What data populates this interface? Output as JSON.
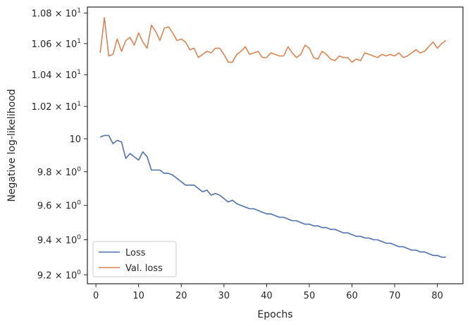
{
  "chart_data": {
    "type": "line",
    "title": "",
    "xlabel": "Epochs",
    "ylabel": "Negative log-likelihood",
    "xlim": [
      -2.0,
      86.0
    ],
    "ylim": [
      9.15,
      10.84
    ],
    "yscale": "log",
    "grid": false,
    "legend_position": "lower-left",
    "x_ticks": [
      0,
      10,
      20,
      30,
      40,
      50,
      60,
      70,
      80
    ],
    "x_tick_labels": [
      "0",
      "10",
      "20",
      "30",
      "40",
      "50",
      "60",
      "70",
      "80"
    ],
    "y_ticks": [
      9.2,
      9.4,
      9.6,
      9.8,
      10.0,
      10.2,
      10.4,
      10.6,
      10.8
    ],
    "y_tick_labels": [
      {
        "mantissa": "9.2",
        "exp": "0"
      },
      {
        "mantissa": "9.4",
        "exp": "0"
      },
      {
        "mantissa": "9.6",
        "exp": "0"
      },
      {
        "mantissa": "9.8",
        "exp": "0"
      },
      {
        "mantissa": "10",
        "exp": "1",
        "plain": "10"
      },
      {
        "mantissa": "1.02",
        "exp": "1"
      },
      {
        "mantissa": "1.04",
        "exp": "1"
      },
      {
        "mantissa": "1.06",
        "exp": "1"
      },
      {
        "mantissa": "1.08",
        "exp": "1"
      }
    ],
    "x": [
      1,
      2,
      3,
      4,
      5,
      6,
      7,
      8,
      9,
      10,
      11,
      12,
      13,
      14,
      15,
      16,
      17,
      18,
      19,
      20,
      21,
      22,
      23,
      24,
      25,
      26,
      27,
      28,
      29,
      30,
      31,
      32,
      33,
      34,
      35,
      36,
      37,
      38,
      39,
      40,
      41,
      42,
      43,
      44,
      45,
      46,
      47,
      48,
      49,
      50,
      51,
      52,
      53,
      54,
      55,
      56,
      57,
      58,
      59,
      60,
      61,
      62,
      63,
      64,
      65,
      66,
      67,
      68,
      69,
      70,
      71,
      72,
      73,
      74,
      75,
      76,
      77,
      78,
      79,
      80,
      81,
      82
    ],
    "series": [
      {
        "name": "Loss",
        "color": "#4c72b0",
        "values": [
          10.01,
          10.02,
          10.02,
          9.97,
          9.99,
          9.98,
          9.88,
          9.91,
          9.89,
          9.87,
          9.92,
          9.89,
          9.81,
          9.81,
          9.81,
          9.79,
          9.79,
          9.78,
          9.76,
          9.74,
          9.72,
          9.72,
          9.72,
          9.7,
          9.68,
          9.69,
          9.66,
          9.67,
          9.66,
          9.64,
          9.62,
          9.63,
          9.61,
          9.6,
          9.59,
          9.58,
          9.58,
          9.57,
          9.56,
          9.55,
          9.55,
          9.54,
          9.53,
          9.53,
          9.52,
          9.51,
          9.51,
          9.5,
          9.49,
          9.49,
          9.48,
          9.48,
          9.47,
          9.47,
          9.46,
          9.46,
          9.45,
          9.44,
          9.44,
          9.43,
          9.42,
          9.42,
          9.41,
          9.41,
          9.4,
          9.4,
          9.39,
          9.38,
          9.38,
          9.37,
          9.36,
          9.36,
          9.35,
          9.34,
          9.34,
          9.33,
          9.33,
          9.32,
          9.31,
          9.31,
          9.3,
          9.3
        ]
      },
      {
        "name": "Val. loss",
        "color": "#dd8452",
        "values": [
          10.54,
          10.77,
          10.52,
          10.53,
          10.63,
          10.55,
          10.62,
          10.64,
          10.59,
          10.67,
          10.61,
          10.57,
          10.72,
          10.68,
          10.62,
          10.7,
          10.71,
          10.67,
          10.62,
          10.63,
          10.61,
          10.56,
          10.57,
          10.51,
          10.53,
          10.55,
          10.54,
          10.57,
          10.57,
          10.53,
          10.48,
          10.48,
          10.53,
          10.55,
          10.58,
          10.53,
          10.54,
          10.55,
          10.51,
          10.51,
          10.54,
          10.53,
          10.52,
          10.52,
          10.58,
          10.54,
          10.51,
          10.53,
          10.59,
          10.57,
          10.51,
          10.5,
          10.55,
          10.53,
          10.5,
          10.49,
          10.52,
          10.51,
          10.51,
          10.48,
          10.5,
          10.49,
          10.54,
          10.53,
          10.52,
          10.51,
          10.53,
          10.52,
          10.53,
          10.52,
          10.54,
          10.51,
          10.52,
          10.54,
          10.56,
          10.54,
          10.55,
          10.58,
          10.61,
          10.57,
          10.6,
          10.62
        ]
      }
    ]
  }
}
